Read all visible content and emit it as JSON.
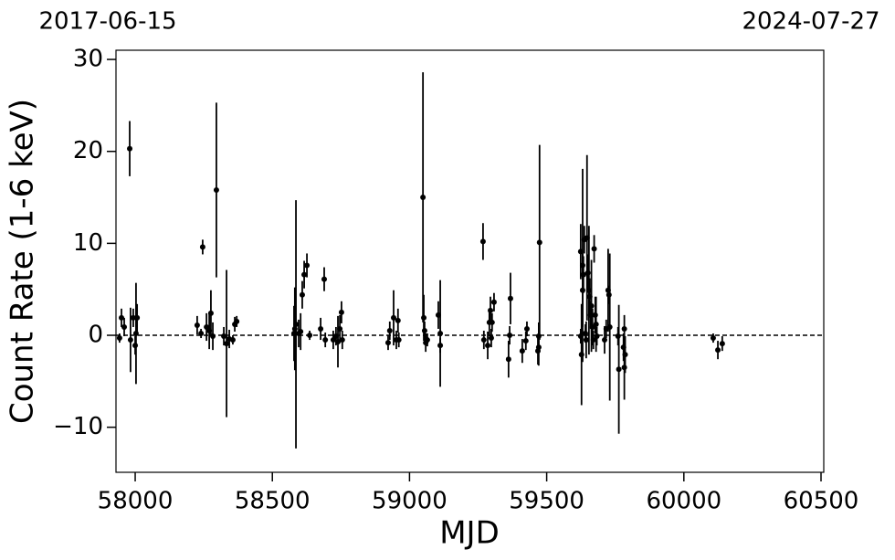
{
  "chart_data": {
    "type": "errorbar-scatter",
    "x_label": "MJD",
    "y_label": "Count Rate (1-6 keV)",
    "top_labels": [
      "2017-06-15",
      "2024-07-27"
    ],
    "xlim": [
      57930,
      60510
    ],
    "ylim": [
      -14.9,
      31
    ],
    "xticks": [
      58000,
      58500,
      59000,
      59500,
      60000,
      60500
    ],
    "yticks": [
      {
        "value": -10,
        "label": "−10"
      },
      0,
      10,
      20,
      30
    ],
    "reference_line": 0,
    "color": "#000000",
    "series": [
      {
        "x": [
          57943,
          57950,
          57960,
          57980,
          57983,
          57993,
          58000,
          58003,
          58007,
          58226,
          58240,
          58246,
          58260,
          58270,
          58276,
          58283,
          58296,
          58323,
          58333,
          58343,
          58356,
          58363,
          58370,
          58579,
          58582,
          58586,
          58596,
          58603,
          58609,
          58616,
          58626,
          58636,
          58676,
          58689,
          58693,
          58722,
          58732,
          58739,
          58746,
          58752,
          58755,
          58922,
          58928,
          58942,
          58952,
          58958,
          58961,
          59049,
          59052,
          59055,
          59059,
          59065,
          59105,
          59112,
          59112,
          59268,
          59271,
          59285,
          59291,
          59295,
          59298,
          59301,
          59308,
          59361,
          59365,
          59368,
          59411,
          59424,
          59428,
          59468,
          59471,
          59474,
          59471,
          59624,
          59627,
          59624,
          59631,
          59631,
          59634,
          59637,
          59641,
          59644,
          59647,
          59650,
          59654,
          59657,
          59660,
          59663,
          59667,
          59670,
          59673,
          59677,
          59680,
          59683,
          59711,
          59717,
          59724,
          59727,
          59730,
          59760,
          59763,
          59780,
          59783,
          59783,
          59786,
          60107,
          60124,
          60140
        ],
        "values": [
          -0.3,
          1.9,
          0.9,
          20.3,
          -0.5,
          1.9,
          -1.1,
          0.2,
          1.9,
          1.1,
          0.2,
          9.6,
          0.9,
          0.5,
          2.4,
          -0.1,
          15.8,
          -0.1,
          -0.9,
          -0.4,
          -0.5,
          1.2,
          1.5,
          0.2,
          0.7,
          1.2,
          0.2,
          0.4,
          4.4,
          6.6,
          7.6,
          0,
          0.7,
          6.1,
          -0.5,
          -0.5,
          -0.1,
          -0.7,
          0.7,
          2.5,
          -0.5,
          -0.8,
          0.5,
          1.9,
          -0.5,
          1.6,
          -0.5,
          15.0,
          1.9,
          0.5,
          -0.8,
          -0.5,
          2.2,
          0.2,
          -1.1,
          10.2,
          -0.5,
          -1.1,
          1.4,
          2.7,
          -0.3,
          1.4,
          3.6,
          -2.6,
          0,
          4.0,
          -1.7,
          -0.6,
          0.7,
          -1.7,
          -1.3,
          10.1,
          -0.1,
          -0.1,
          -2.1,
          9.1,
          7.6,
          4.9,
          6.6,
          10.4,
          0.2,
          -0.5,
          10.6,
          6.8,
          4.9,
          4.2,
          2.2,
          3.2,
          0.9,
          -0.5,
          9.4,
          2.2,
          1.2,
          -0.1,
          -0.5,
          0.7,
          4.9,
          4.4,
          0.9,
          -0.1,
          -3.7,
          -1.3,
          0.7,
          -3.5,
          -2.1,
          -0.3,
          -1.6,
          -0.9
        ],
        "errors": [
          0.5,
          1,
          1,
          3,
          3.5,
          1,
          1,
          5.5,
          1.5,
          1,
          0.5,
          0.8,
          1.5,
          2,
          2.5,
          1.5,
          9.5,
          1,
          8,
          1,
          0.5,
          0.8,
          0.6,
          3,
          4.5,
          13.5,
          1.5,
          2,
          1.5,
          1.5,
          1.3,
          0.5,
          1.2,
          1.3,
          0.8,
          1,
          1,
          2.8,
          1.5,
          1.2,
          1,
          0.8,
          1,
          3,
          1,
          1.3,
          0.8,
          13.6,
          2.5,
          1,
          1,
          0.7,
          1.5,
          5.8,
          0.8,
          2,
          1,
          1.5,
          1.5,
          1.5,
          1,
          1,
          1,
          2,
          1,
          2.8,
          1.3,
          1,
          0.8,
          1.5,
          2,
          10.6,
          1.5,
          0.8,
          5.5,
          3,
          10.5,
          4,
          2,
          1.5,
          1,
          2,
          9,
          2,
          7,
          2,
          1.5,
          5,
          2,
          1,
          1.5,
          2,
          3,
          1,
          1.5,
          1,
          4.5,
          1,
          8,
          1,
          7,
          1.5,
          1.5,
          3.5,
          2,
          0.5,
          1,
          0.8
        ]
      }
    ]
  }
}
